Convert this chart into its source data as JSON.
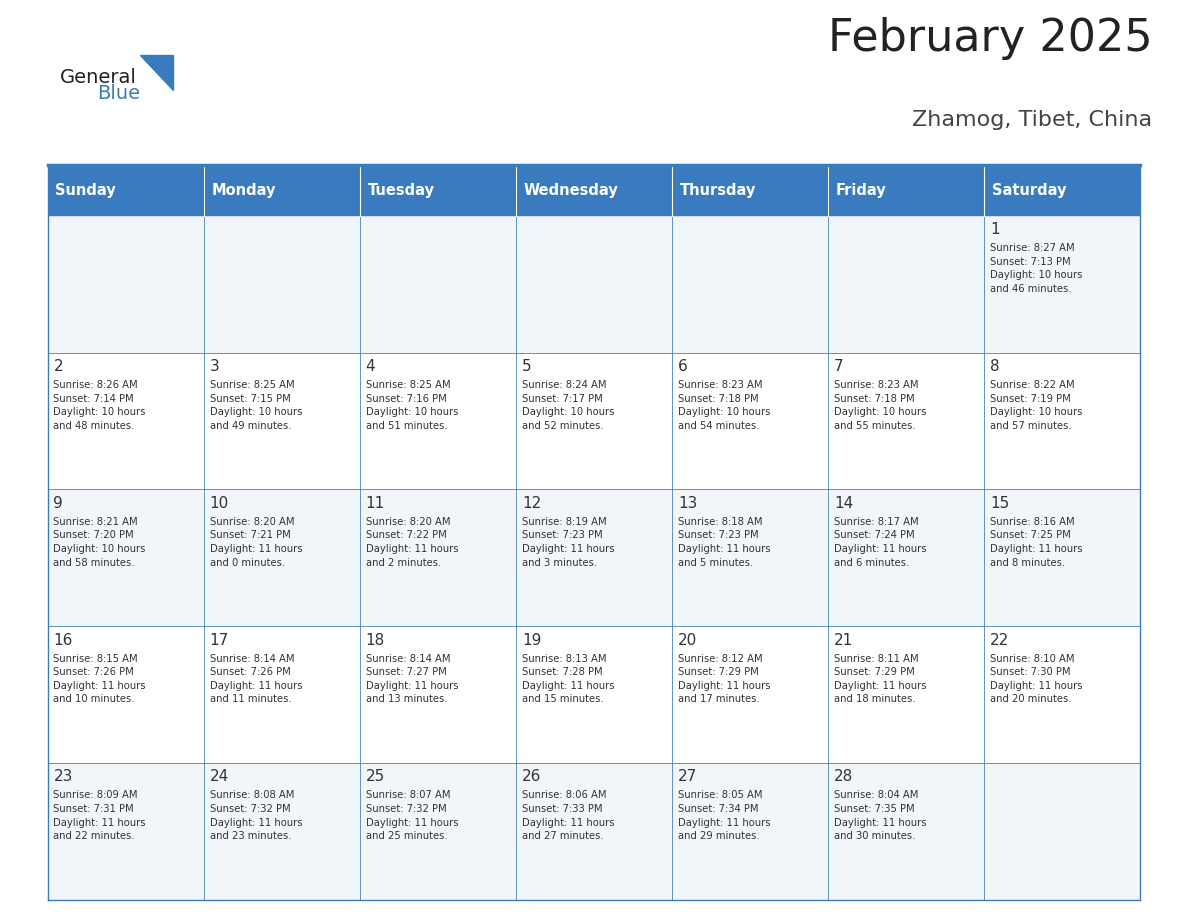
{
  "title": "February 2025",
  "subtitle": "Zhamog, Tibet, China",
  "header_color": "#3a7bbf",
  "header_text_color": "#ffffff",
  "border_color": "#3a7bbf",
  "text_color": "#333333",
  "days_of_week": [
    "Sunday",
    "Monday",
    "Tuesday",
    "Wednesday",
    "Thursday",
    "Friday",
    "Saturday"
  ],
  "weeks": [
    [
      {
        "day": null,
        "sunrise": null,
        "sunset": null,
        "daylight": null
      },
      {
        "day": null,
        "sunrise": null,
        "sunset": null,
        "daylight": null
      },
      {
        "day": null,
        "sunrise": null,
        "sunset": null,
        "daylight": null
      },
      {
        "day": null,
        "sunrise": null,
        "sunset": null,
        "daylight": null
      },
      {
        "day": null,
        "sunrise": null,
        "sunset": null,
        "daylight": null
      },
      {
        "day": null,
        "sunrise": null,
        "sunset": null,
        "daylight": null
      },
      {
        "day": 1,
        "sunrise": "8:27 AM",
        "sunset": "7:13 PM",
        "daylight": "10 hours\nand 46 minutes."
      }
    ],
    [
      {
        "day": 2,
        "sunrise": "8:26 AM",
        "sunset": "7:14 PM",
        "daylight": "10 hours\nand 48 minutes."
      },
      {
        "day": 3,
        "sunrise": "8:25 AM",
        "sunset": "7:15 PM",
        "daylight": "10 hours\nand 49 minutes."
      },
      {
        "day": 4,
        "sunrise": "8:25 AM",
        "sunset": "7:16 PM",
        "daylight": "10 hours\nand 51 minutes."
      },
      {
        "day": 5,
        "sunrise": "8:24 AM",
        "sunset": "7:17 PM",
        "daylight": "10 hours\nand 52 minutes."
      },
      {
        "day": 6,
        "sunrise": "8:23 AM",
        "sunset": "7:18 PM",
        "daylight": "10 hours\nand 54 minutes."
      },
      {
        "day": 7,
        "sunrise": "8:23 AM",
        "sunset": "7:18 PM",
        "daylight": "10 hours\nand 55 minutes."
      },
      {
        "day": 8,
        "sunrise": "8:22 AM",
        "sunset": "7:19 PM",
        "daylight": "10 hours\nand 57 minutes."
      }
    ],
    [
      {
        "day": 9,
        "sunrise": "8:21 AM",
        "sunset": "7:20 PM",
        "daylight": "10 hours\nand 58 minutes."
      },
      {
        "day": 10,
        "sunrise": "8:20 AM",
        "sunset": "7:21 PM",
        "daylight": "11 hours\nand 0 minutes."
      },
      {
        "day": 11,
        "sunrise": "8:20 AM",
        "sunset": "7:22 PM",
        "daylight": "11 hours\nand 2 minutes."
      },
      {
        "day": 12,
        "sunrise": "8:19 AM",
        "sunset": "7:23 PM",
        "daylight": "11 hours\nand 3 minutes."
      },
      {
        "day": 13,
        "sunrise": "8:18 AM",
        "sunset": "7:23 PM",
        "daylight": "11 hours\nand 5 minutes."
      },
      {
        "day": 14,
        "sunrise": "8:17 AM",
        "sunset": "7:24 PM",
        "daylight": "11 hours\nand 6 minutes."
      },
      {
        "day": 15,
        "sunrise": "8:16 AM",
        "sunset": "7:25 PM",
        "daylight": "11 hours\nand 8 minutes."
      }
    ],
    [
      {
        "day": 16,
        "sunrise": "8:15 AM",
        "sunset": "7:26 PM",
        "daylight": "11 hours\nand 10 minutes."
      },
      {
        "day": 17,
        "sunrise": "8:14 AM",
        "sunset": "7:26 PM",
        "daylight": "11 hours\nand 11 minutes."
      },
      {
        "day": 18,
        "sunrise": "8:14 AM",
        "sunset": "7:27 PM",
        "daylight": "11 hours\nand 13 minutes."
      },
      {
        "day": 19,
        "sunrise": "8:13 AM",
        "sunset": "7:28 PM",
        "daylight": "11 hours\nand 15 minutes."
      },
      {
        "day": 20,
        "sunrise": "8:12 AM",
        "sunset": "7:29 PM",
        "daylight": "11 hours\nand 17 minutes."
      },
      {
        "day": 21,
        "sunrise": "8:11 AM",
        "sunset": "7:29 PM",
        "daylight": "11 hours\nand 18 minutes."
      },
      {
        "day": 22,
        "sunrise": "8:10 AM",
        "sunset": "7:30 PM",
        "daylight": "11 hours\nand 20 minutes."
      }
    ],
    [
      {
        "day": 23,
        "sunrise": "8:09 AM",
        "sunset": "7:31 PM",
        "daylight": "11 hours\nand 22 minutes."
      },
      {
        "day": 24,
        "sunrise": "8:08 AM",
        "sunset": "7:32 PM",
        "daylight": "11 hours\nand 23 minutes."
      },
      {
        "day": 25,
        "sunrise": "8:07 AM",
        "sunset": "7:32 PM",
        "daylight": "11 hours\nand 25 minutes."
      },
      {
        "day": 26,
        "sunrise": "8:06 AM",
        "sunset": "7:33 PM",
        "daylight": "11 hours\nand 27 minutes."
      },
      {
        "day": 27,
        "sunrise": "8:05 AM",
        "sunset": "7:34 PM",
        "daylight": "11 hours\nand 29 minutes."
      },
      {
        "day": 28,
        "sunrise": "8:04 AM",
        "sunset": "7:35 PM",
        "daylight": "11 hours\nand 30 minutes."
      },
      {
        "day": null,
        "sunrise": null,
        "sunset": null,
        "daylight": null
      }
    ]
  ]
}
